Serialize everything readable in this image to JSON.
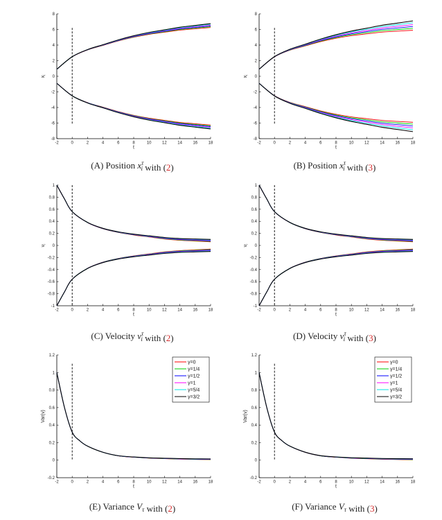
{
  "colors": {
    "series": [
      "#ff0000",
      "#00cc00",
      "#0000ff",
      "#ff00ff",
      "#00e5e5",
      "#000000"
    ],
    "vline": "#000000",
    "ref": "#d42a2a"
  },
  "chart_data": [
    {
      "id": "A",
      "type": "line",
      "kind": "position",
      "xlabel": "t",
      "ylabel": "x",
      "ylabel_sub": "i",
      "xlim": [
        -2,
        18
      ],
      "ylim": [
        -8,
        8
      ],
      "xticks": [
        "-2",
        "0",
        "2",
        "4",
        "6",
        "8",
        "10",
        "12",
        "14",
        "16",
        "18"
      ],
      "yticks": [
        "-8",
        "-6",
        "-4",
        "-2",
        "0",
        "2",
        "4",
        "6",
        "8"
      ],
      "vline_x": 0,
      "vline_range": [
        -6.2,
        6.2
      ],
      "x": [
        -2,
        0,
        2,
        4,
        6,
        8,
        10,
        12,
        14,
        16,
        18
      ],
      "upper_series_y": [
        0.9,
        2.5,
        3.4,
        4.0,
        4.6,
        5.1,
        5.5,
        5.8,
        6.1,
        6.3,
        6.5
      ],
      "lower_series_y": [
        -0.9,
        -2.5,
        -3.4,
        -4.0,
        -4.6,
        -5.1,
        -5.5,
        -5.8,
        -6.1,
        -6.3,
        -6.5
      ],
      "spread_end": 0.25,
      "caption_prefix": "(A) Position ",
      "caption_math": "x",
      "caption_sup": "τ",
      "caption_sub": "i",
      "caption_mid": " with (",
      "caption_ref": "2",
      "caption_suffix": ")"
    },
    {
      "id": "B",
      "type": "line",
      "kind": "position",
      "xlabel": "t",
      "ylabel": "x",
      "ylabel_sub": "i",
      "xlim": [
        -2,
        18
      ],
      "ylim": [
        -8,
        8
      ],
      "xticks": [
        "-2",
        "0",
        "2",
        "4",
        "6",
        "8",
        "10",
        "12",
        "14",
        "16",
        "18"
      ],
      "yticks": [
        "-8",
        "-6",
        "-4",
        "-2",
        "0",
        "2",
        "4",
        "6",
        "8"
      ],
      "vline_x": 0,
      "vline_range": [
        -6.2,
        6.2
      ],
      "x": [
        -2,
        0,
        2,
        4,
        6,
        8,
        10,
        12,
        14,
        16,
        18
      ],
      "upper_series_y": [
        0.9,
        2.5,
        3.4,
        4.0,
        4.6,
        5.1,
        5.5,
        5.8,
        6.1,
        6.3,
        6.5
      ],
      "lower_series_y": [
        -0.9,
        -2.5,
        -3.4,
        -4.0,
        -4.6,
        -5.1,
        -5.5,
        -5.8,
        -6.1,
        -6.3,
        -6.5
      ],
      "spread_end": 0.6,
      "caption_prefix": "(B) Position ",
      "caption_math": "x",
      "caption_sup": "τ",
      "caption_sub": "i",
      "caption_mid": " with (",
      "caption_ref": "3",
      "caption_suffix": ")"
    },
    {
      "id": "C",
      "type": "line",
      "kind": "velocity",
      "xlabel": "t",
      "ylabel": "v",
      "ylabel_sub": "i",
      "xlim": [
        -2,
        18
      ],
      "ylim": [
        -1,
        1
      ],
      "xticks": [
        "-2",
        "0",
        "2",
        "4",
        "6",
        "8",
        "10",
        "12",
        "14",
        "16",
        "18"
      ],
      "yticks": [
        "-1",
        "-0.8",
        "-0.6",
        "-0.4",
        "-0.2",
        "0",
        "0.2",
        "0.4",
        "0.6",
        "0.8",
        "1"
      ],
      "vline_x": 0,
      "vline_range": [
        -1,
        1
      ],
      "x": [
        -2,
        -1,
        0,
        2,
        4,
        6,
        8,
        10,
        12,
        14,
        16,
        18
      ],
      "upper_series_y": [
        1.0,
        0.77,
        0.56,
        0.38,
        0.28,
        0.22,
        0.18,
        0.15,
        0.12,
        0.1,
        0.09,
        0.08
      ],
      "lower_series_y": [
        -1.0,
        -0.77,
        -0.56,
        -0.38,
        -0.28,
        -0.22,
        -0.18,
        -0.15,
        -0.12,
        -0.1,
        -0.09,
        -0.08
      ],
      "spread_end": 0.02,
      "caption_prefix": "(C) Velocity ",
      "caption_math": "v",
      "caption_sup": "τ",
      "caption_sub": "i",
      "caption_mid": " with (",
      "caption_ref": "2",
      "caption_suffix": ")"
    },
    {
      "id": "D",
      "type": "line",
      "kind": "velocity",
      "xlabel": "t",
      "ylabel": "v",
      "ylabel_sub": "i",
      "xlim": [
        -2,
        18
      ],
      "ylim": [
        -1,
        1
      ],
      "xticks": [
        "-2",
        "0",
        "2",
        "4",
        "6",
        "8",
        "10",
        "12",
        "14",
        "16",
        "18"
      ],
      "yticks": [
        "-1",
        "-0.8",
        "-0.6",
        "-0.4",
        "-0.2",
        "0",
        "0.2",
        "0.4",
        "0.6",
        "0.8",
        "1"
      ],
      "vline_x": 0,
      "vline_range": [
        -1,
        1
      ],
      "x": [
        -2,
        -1,
        0,
        2,
        4,
        6,
        8,
        10,
        12,
        14,
        16,
        18
      ],
      "upper_series_y": [
        1.0,
        0.77,
        0.56,
        0.38,
        0.28,
        0.22,
        0.18,
        0.15,
        0.12,
        0.1,
        0.09,
        0.08
      ],
      "lower_series_y": [
        -1.0,
        -0.77,
        -0.56,
        -0.38,
        -0.28,
        -0.22,
        -0.18,
        -0.15,
        -0.12,
        -0.1,
        -0.09,
        -0.08
      ],
      "spread_end": 0.02,
      "caption_prefix": "(D) Velocity ",
      "caption_math": "v",
      "caption_sup": "τ",
      "caption_sub": "i",
      "caption_mid": " with (",
      "caption_ref": "3",
      "caption_suffix": ")"
    },
    {
      "id": "E",
      "type": "line",
      "kind": "variance",
      "xlabel": "t",
      "ylabel": "Var(v)",
      "ylabel_sub": "",
      "xlim": [
        -2,
        18
      ],
      "ylim": [
        -0.2,
        1.2
      ],
      "xticks": [
        "-2",
        "0",
        "2",
        "4",
        "6",
        "8",
        "10",
        "12",
        "14",
        "16",
        "18"
      ],
      "yticks": [
        "-0.2",
        "0",
        "0.2",
        "0.4",
        "0.6",
        "0.8",
        "1",
        "1.2"
      ],
      "vline_x": 0,
      "vline_range": [
        0,
        1.1
      ],
      "x": [
        -2,
        -1,
        0,
        1,
        2,
        4,
        6,
        8,
        10,
        12,
        14,
        16,
        18
      ],
      "upper_series_y": [
        1.0,
        0.6,
        0.32,
        0.22,
        0.16,
        0.09,
        0.05,
        0.035,
        0.025,
        0.02,
        0.015,
        0.012,
        0.01
      ],
      "spread_end": 0.004,
      "legend": [
        "γ=0",
        "γ=1/4",
        "γ=1/2",
        "γ=1",
        "γ=5/4",
        "γ=3/2"
      ],
      "legend_position": "top-right",
      "caption_prefix": "(E) Variance ",
      "caption_math": "V",
      "caption_sup": "",
      "caption_sub": "τ",
      "caption_mid": " with (",
      "caption_ref": "2",
      "caption_suffix": ")"
    },
    {
      "id": "F",
      "type": "line",
      "kind": "variance",
      "xlabel": "t",
      "ylabel": "Var(v)",
      "ylabel_sub": "",
      "xlim": [
        -2,
        18
      ],
      "ylim": [
        -0.2,
        1.2
      ],
      "xticks": [
        "-2",
        "0",
        "2",
        "4",
        "6",
        "8",
        "10",
        "12",
        "14",
        "16",
        "18"
      ],
      "yticks": [
        "-0.2",
        "0",
        "0.2",
        "0.4",
        "0.6",
        "0.8",
        "1",
        "1.2"
      ],
      "vline_x": 0,
      "vline_range": [
        0,
        1.1
      ],
      "x": [
        -2,
        -1,
        0,
        1,
        2,
        4,
        6,
        8,
        10,
        12,
        14,
        16,
        18
      ],
      "upper_series_y": [
        1.0,
        0.6,
        0.32,
        0.22,
        0.16,
        0.09,
        0.05,
        0.035,
        0.025,
        0.02,
        0.015,
        0.012,
        0.01
      ],
      "spread_end": 0.006,
      "legend": [
        "γ=0",
        "γ=1/4",
        "γ=1/2",
        "γ=1",
        "γ=5/4",
        "γ=3/2"
      ],
      "legend_position": "top-right",
      "caption_prefix": "(F) Variance ",
      "caption_math": "V",
      "caption_sup": "",
      "caption_sub": "τ",
      "caption_mid": " with (",
      "caption_ref": "3",
      "caption_suffix": ")"
    }
  ]
}
